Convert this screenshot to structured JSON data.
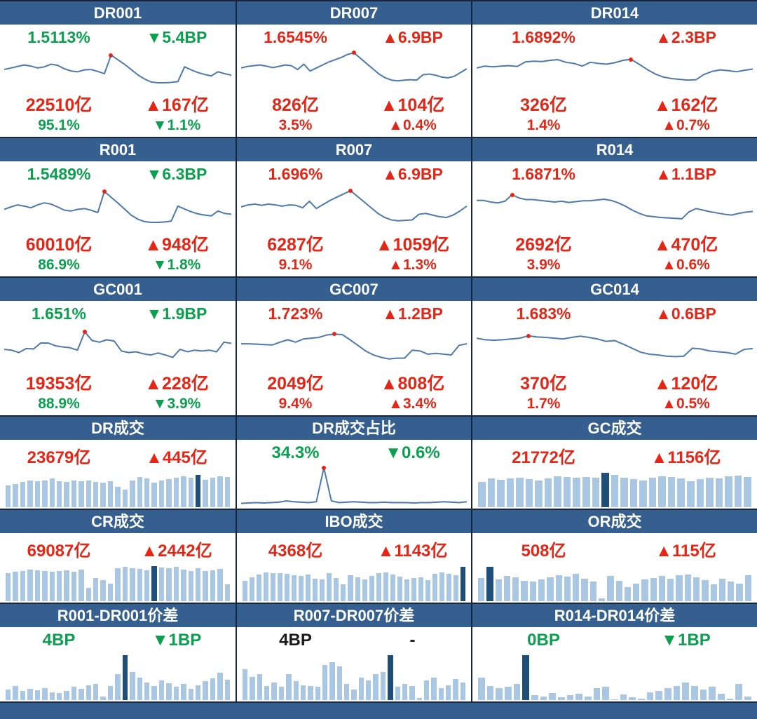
{
  "colors": {
    "header_blue": "#355f8e",
    "grid_line": "#18253e",
    "green": "#0ba04f",
    "red": "#e52617",
    "black": "#1a1a1a",
    "line": "#4d79ac",
    "bar": "#a9c6e3",
    "bar_highlight": "#1f4e79",
    "dot": "#e52617"
  },
  "chart_data": [
    {
      "title": "DR001",
      "type": "line",
      "stats": [
        {
          "left": "1.5113%",
          "right": "▼5.4BP",
          "left_color": "#0ba04f",
          "right_color": "#0ba04f"
        },
        {
          "left": "22510亿",
          "right": "▲167亿",
          "left_color": "#e52617",
          "right_color": "#e52617"
        },
        {
          "left": "95.1%",
          "right": "▼1.1%",
          "left_color": "#0ba04f",
          "right_color": "#0ba04f"
        }
      ],
      "chart": {
        "type": "line",
        "values": [
          48,
          52,
          56,
          60,
          57,
          52,
          55,
          62,
          59,
          50,
          44,
          42,
          47,
          48,
          43,
          37,
          86,
          74,
          62,
          48,
          34,
          23,
          15,
          13,
          13,
          14,
          16,
          55,
          47,
          40,
          35,
          31,
          42,
          37,
          33
        ]
      }
    },
    {
      "title": "DR007",
      "type": "line",
      "stats": [
        {
          "left": "1.6545%",
          "right": "▲6.9BP",
          "left_color": "#e52617",
          "right_color": "#e52617"
        },
        {
          "left": "826亿",
          "right": "▲104亿",
          "left_color": "#e52617",
          "right_color": "#e52617"
        },
        {
          "left": "3.5%",
          "right": "▲0.4%",
          "left_color": "#e52617",
          "right_color": "#e52617"
        }
      ],
      "chart": {
        "type": "line",
        "values": [
          52,
          56,
          58,
          60,
          57,
          53,
          56,
          60,
          58,
          48,
          62,
          44,
          52,
          60,
          68,
          74,
          80,
          88,
          92,
          78,
          64,
          50,
          36,
          26,
          20,
          18,
          20,
          21,
          20,
          34,
          36,
          33,
          28,
          26,
          30,
          40,
          50
        ]
      }
    },
    {
      "title": "DR014",
      "type": "line",
      "stats": [
        {
          "left": "1.6892%",
          "right": "▲2.3BP",
          "left_color": "#e52617",
          "right_color": "#e52617"
        },
        {
          "left": "326亿",
          "right": "▲162亿",
          "left_color": "#e52617",
          "right_color": "#e52617"
        },
        {
          "left": "1.4%",
          "right": "▲0.7%",
          "left_color": "#e52617",
          "right_color": "#e52617"
        }
      ],
      "chart": {
        "type": "line",
        "values": [
          52,
          57,
          55,
          57,
          58,
          56,
          68,
          70,
          69,
          72,
          74,
          67,
          64,
          57,
          67,
          64,
          62,
          66,
          72,
          75,
          62,
          48,
          36,
          28,
          24,
          22,
          20,
          21,
          35,
          43,
          47,
          45,
          42,
          46,
          49
        ]
      }
    },
    {
      "title": "R001",
      "type": "line",
      "stats": [
        {
          "left": "1.5489%",
          "right": "▼6.3BP",
          "left_color": "#0ba04f",
          "right_color": "#0ba04f"
        },
        {
          "left": "60010亿",
          "right": "▲948亿",
          "left_color": "#e52617",
          "right_color": "#e52617"
        },
        {
          "left": "86.9%",
          "right": "▼1.8%",
          "left_color": "#0ba04f",
          "right_color": "#0ba04f"
        }
      ],
      "chart": {
        "type": "line",
        "values": [
          44,
          50,
          55,
          52,
          48,
          55,
          60,
          57,
          50,
          42,
          40,
          44,
          46,
          42,
          36,
          88,
          74,
          60,
          45,
          30,
          20,
          14,
          12,
          12,
          13,
          15,
          52,
          45,
          38,
          33,
          30,
          28,
          40,
          34,
          32
        ]
      }
    },
    {
      "title": "R007",
      "type": "line",
      "stats": [
        {
          "left": "1.696%",
          "right": "▲6.9BP",
          "left_color": "#e52617",
          "right_color": "#e52617"
        },
        {
          "left": "6287亿",
          "right": "▲1059亿",
          "left_color": "#e52617",
          "right_color": "#e52617"
        },
        {
          "left": "9.1%",
          "right": "▲1.3%",
          "left_color": "#e52617",
          "right_color": "#e52617"
        }
      ],
      "chart": {
        "type": "line",
        "values": [
          50,
          55,
          57,
          54,
          57,
          55,
          52,
          55,
          54,
          48,
          64,
          46,
          56,
          66,
          74,
          82,
          90,
          76,
          62,
          48,
          34,
          24,
          18,
          16,
          17,
          18,
          32,
          34,
          30,
          26,
          24,
          30,
          40,
          52
        ]
      }
    },
    {
      "title": "R014",
      "type": "line",
      "stats": [
        {
          "left": "1.6871%",
          "right": "▲1.1BP",
          "left_color": "#e52617",
          "right_color": "#e52617"
        },
        {
          "left": "2692亿",
          "right": "▲470亿",
          "left_color": "#e52617",
          "right_color": "#e52617"
        },
        {
          "left": "3.9%",
          "right": "▲0.6%",
          "left_color": "#e52617",
          "right_color": "#e52617"
        }
      ],
      "chart": {
        "type": "line",
        "values": [
          66,
          66,
          62,
          60,
          64,
          80,
          72,
          68,
          68,
          66,
          64,
          62,
          64,
          61,
          63,
          65,
          65,
          67,
          69,
          66,
          60,
          52,
          42,
          34,
          28,
          26,
          24,
          23,
          22,
          21,
          38,
          46,
          42,
          38,
          35,
          32,
          30,
          34,
          37,
          39
        ]
      }
    },
    {
      "title": "GC001",
      "type": "line",
      "stats": [
        {
          "left": "1.651%",
          "right": "▼1.9BP",
          "left_color": "#0ba04f",
          "right_color": "#0ba04f"
        },
        {
          "left": "19353亿",
          "right": "▲228亿",
          "left_color": "#e52617",
          "right_color": "#e52617"
        },
        {
          "left": "88.9%",
          "right": "▼3.9%",
          "left_color": "#0ba04f",
          "right_color": "#0ba04f"
        }
      ],
      "chart": {
        "type": "line",
        "values": [
          42,
          40,
          34,
          44,
          43,
          58,
          58,
          51,
          48,
          46,
          40,
          86,
          64,
          60,
          66,
          63,
          38,
          34,
          36,
          31,
          28,
          33,
          28,
          22,
          42,
          36,
          40,
          38,
          40,
          36,
          60,
          57
        ]
      }
    },
    {
      "title": "GC007",
      "type": "line",
      "stats": [
        {
          "left": "1.723%",
          "right": "▲1.2BP",
          "left_color": "#e52617",
          "right_color": "#e52617"
        },
        {
          "left": "2049亿",
          "right": "▲808亿",
          "left_color": "#e52617",
          "right_color": "#e52617"
        },
        {
          "left": "9.4%",
          "right": "▲3.4%",
          "left_color": "#e52617",
          "right_color": "#e52617"
        }
      ],
      "chart": {
        "type": "line",
        "values": [
          56,
          56,
          55,
          54,
          53,
          60,
          66,
          60,
          68,
          70,
          72,
          78,
          80,
          79,
          66,
          52,
          38,
          28,
          22,
          18,
          20,
          20,
          40,
          38,
          30,
          32,
          30,
          28,
          52,
          56
        ]
      }
    },
    {
      "title": "GC014",
      "type": "line",
      "stats": [
        {
          "left": "1.683%",
          "right": "▲0.6BP",
          "left_color": "#e52617",
          "right_color": "#e52617"
        },
        {
          "left": "370亿",
          "right": "▲120亿",
          "left_color": "#e52617",
          "right_color": "#e52617"
        },
        {
          "left": "1.7%",
          "right": "▲0.5%",
          "left_color": "#e52617",
          "right_color": "#e52617"
        }
      ],
      "chart": {
        "type": "line",
        "values": [
          70,
          66,
          65,
          66,
          68,
          70,
          76,
          73,
          72,
          70,
          68,
          72,
          75,
          72,
          68,
          62,
          64,
          55,
          45,
          35,
          30,
          28,
          25,
          24,
          25,
          45,
          43,
          38,
          36,
          34,
          30,
          42,
          44
        ]
      }
    },
    {
      "title": "DR成交",
      "type": "bar",
      "stats": [
        {
          "left": "23679亿",
          "right": "▲445亿",
          "left_color": "#e52617",
          "right_color": "#e52617"
        }
      ],
      "chart": {
        "type": "bar",
        "highlight": 26,
        "values": [
          60,
          64,
          70,
          74,
          72,
          74,
          78,
          72,
          70,
          73,
          71,
          73,
          70,
          68,
          72,
          55,
          48,
          74,
          82,
          78,
          68,
          73,
          76,
          80,
          85,
          80,
          88,
          75,
          80,
          84,
          82
        ]
      }
    },
    {
      "title": "DR成交占比",
      "type": "line",
      "stats": [
        {
          "left": "34.3%",
          "right": "▼0.6%",
          "left_color": "#0ba04f",
          "right_color": "#0ba04f"
        }
      ],
      "chart": {
        "type": "line",
        "values": [
          6,
          7,
          8,
          7,
          8,
          9,
          12,
          10,
          9,
          8,
          10,
          95,
          12,
          8,
          9,
          10,
          9,
          8,
          8,
          9,
          8,
          8,
          8,
          7,
          8,
          8,
          9,
          10,
          9,
          8,
          10
        ]
      }
    },
    {
      "title": "GC成交",
      "type": "bar",
      "stats": [
        {
          "left": "21772亿",
          "right": "▲1156亿",
          "left_color": "#e52617",
          "right_color": "#e52617"
        }
      ],
      "chart": {
        "type": "bar",
        "highlight": 13,
        "values": [
          70,
          78,
          75,
          78,
          80,
          76,
          74,
          78,
          85,
          82,
          80,
          82,
          80,
          95,
          88,
          80,
          76,
          74,
          80,
          84,
          82,
          78,
          72,
          76,
          80,
          78,
          84,
          86,
          82
        ]
      }
    },
    {
      "title": "CR成交",
      "type": "bar",
      "stats": [
        {
          "left": "69087亿",
          "right": "▲2442亿",
          "left_color": "#e52617",
          "right_color": "#e52617"
        }
      ],
      "chart": {
        "type": "bar",
        "highlight": 20,
        "values": [
          75,
          80,
          82,
          85,
          83,
          82,
          79,
          81,
          83,
          80,
          84,
          35,
          62,
          56,
          48,
          88,
          92,
          89,
          86,
          83,
          95,
          90,
          88,
          92,
          84,
          82,
          88,
          81,
          83,
          86,
          45
        ]
      }
    },
    {
      "title": "IBO成交",
      "type": "bar",
      "stats": [
        {
          "left": "4368亿",
          "right": "▲1143亿",
          "left_color": "#e52617",
          "right_color": "#e52617"
        }
      ],
      "chart": {
        "type": "bar",
        "highlight": 31,
        "values": [
          55,
          65,
          72,
          78,
          75,
          76,
          73,
          70,
          68,
          72,
          60,
          58,
          75,
          62,
          45,
          70,
          64,
          58,
          68,
          75,
          78,
          72,
          66,
          58,
          62,
          64,
          56,
          73,
          78,
          74,
          70,
          92
        ]
      }
    },
    {
      "title": "OR成交",
      "type": "bar",
      "stats": [
        {
          "left": "508亿",
          "right": "▲115亿",
          "left_color": "#e52617",
          "right_color": "#e52617"
        }
      ],
      "chart": {
        "type": "bar",
        "highlight": 1,
        "values": [
          62,
          92,
          58,
          68,
          65,
          55,
          52,
          58,
          64,
          70,
          66,
          74,
          60,
          52,
          8,
          68,
          54,
          38,
          48,
          58,
          62,
          68,
          60,
          70,
          72,
          64,
          56,
          46,
          60,
          52,
          48,
          70
        ]
      }
    },
    {
      "title": "R001-DR001价差",
      "type": "bar",
      "stats": [
        {
          "left": "4BP",
          "right": "▼1BP",
          "left_color": "#0ba04f",
          "right_color": "#0ba04f"
        }
      ],
      "chart": {
        "type": "bar",
        "highlight": 16,
        "values": [
          22,
          30,
          20,
          24,
          21,
          26,
          17,
          15,
          20,
          28,
          24,
          32,
          34,
          8,
          30,
          55,
          95,
          60,
          48,
          38,
          30,
          42,
          36,
          28,
          34,
          24,
          32,
          40,
          46,
          58,
          44
        ]
      }
    },
    {
      "title": "R007-DR007价差",
      "type": "bar",
      "stats": [
        {
          "left": "4BP",
          "right": "-",
          "left_color": "#1a1a1a",
          "right_color": "#1a1a1a"
        }
      ],
      "chart": {
        "type": "bar",
        "highlight": 20,
        "values": [
          65,
          50,
          55,
          30,
          38,
          28,
          55,
          40,
          32,
          30,
          28,
          75,
          80,
          72,
          35,
          22,
          48,
          42,
          55,
          60,
          95,
          28,
          35,
          30,
          5,
          42,
          48,
          25,
          32,
          45,
          38
        ]
      }
    },
    {
      "title": "R014-DR014价差",
      "type": "bar",
      "stats": [
        {
          "left": "0BP",
          "right": "▼1BP",
          "left_color": "#0ba04f",
          "right_color": "#0ba04f"
        }
      ],
      "chart": {
        "type": "bar",
        "highlight": 5,
        "values": [
          48,
          30,
          25,
          28,
          35,
          95,
          10,
          8,
          15,
          6,
          10,
          14,
          8,
          25,
          28,
          2,
          12,
          6,
          3,
          16,
          20,
          26,
          30,
          38,
          30,
          22,
          28,
          14,
          3,
          35,
          8
        ]
      }
    }
  ]
}
